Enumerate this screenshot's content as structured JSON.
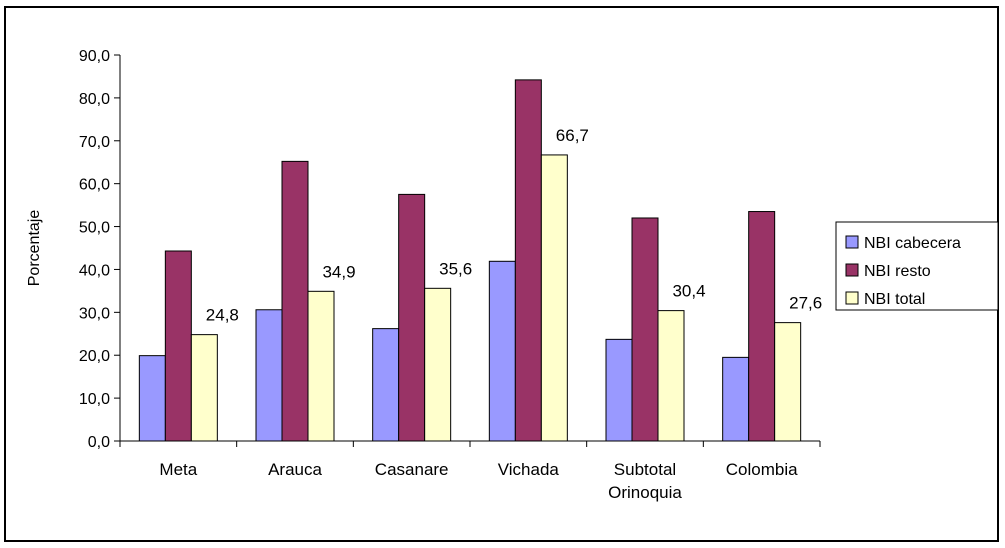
{
  "chart_data": {
    "type": "bar",
    "title": "",
    "xlabel": "",
    "ylabel": "Porcentaje",
    "ylim": [
      0,
      90
    ],
    "yticks": [
      "0,0",
      "10,0",
      "20,0",
      "30,0",
      "40,0",
      "50,0",
      "60,0",
      "70,0",
      "80,0",
      "90,0"
    ],
    "categories": [
      [
        "Meta"
      ],
      [
        "Arauca"
      ],
      [
        "Casanare"
      ],
      [
        "Vichada"
      ],
      [
        "Subtotal",
        "Orinoquia"
      ],
      [
        "Colombia"
      ]
    ],
    "series": [
      {
        "name": "NBI cabecera",
        "color": "#9999ff",
        "values": [
          19.9,
          30.6,
          26.2,
          41.9,
          23.7,
          19.5
        ]
      },
      {
        "name": "NBI resto",
        "color": "#993366",
        "values": [
          44.3,
          65.2,
          57.5,
          84.2,
          52.0,
          53.5
        ]
      },
      {
        "name": "NBI total",
        "color": "#ffffcc",
        "values": [
          24.8,
          34.9,
          35.6,
          66.7,
          30.4,
          27.6
        ]
      }
    ],
    "data_labels": [
      "24,8",
      "34,9",
      "35,6",
      "66,7",
      "30,4",
      "27,6"
    ],
    "legend_position": "right",
    "grid": false
  }
}
